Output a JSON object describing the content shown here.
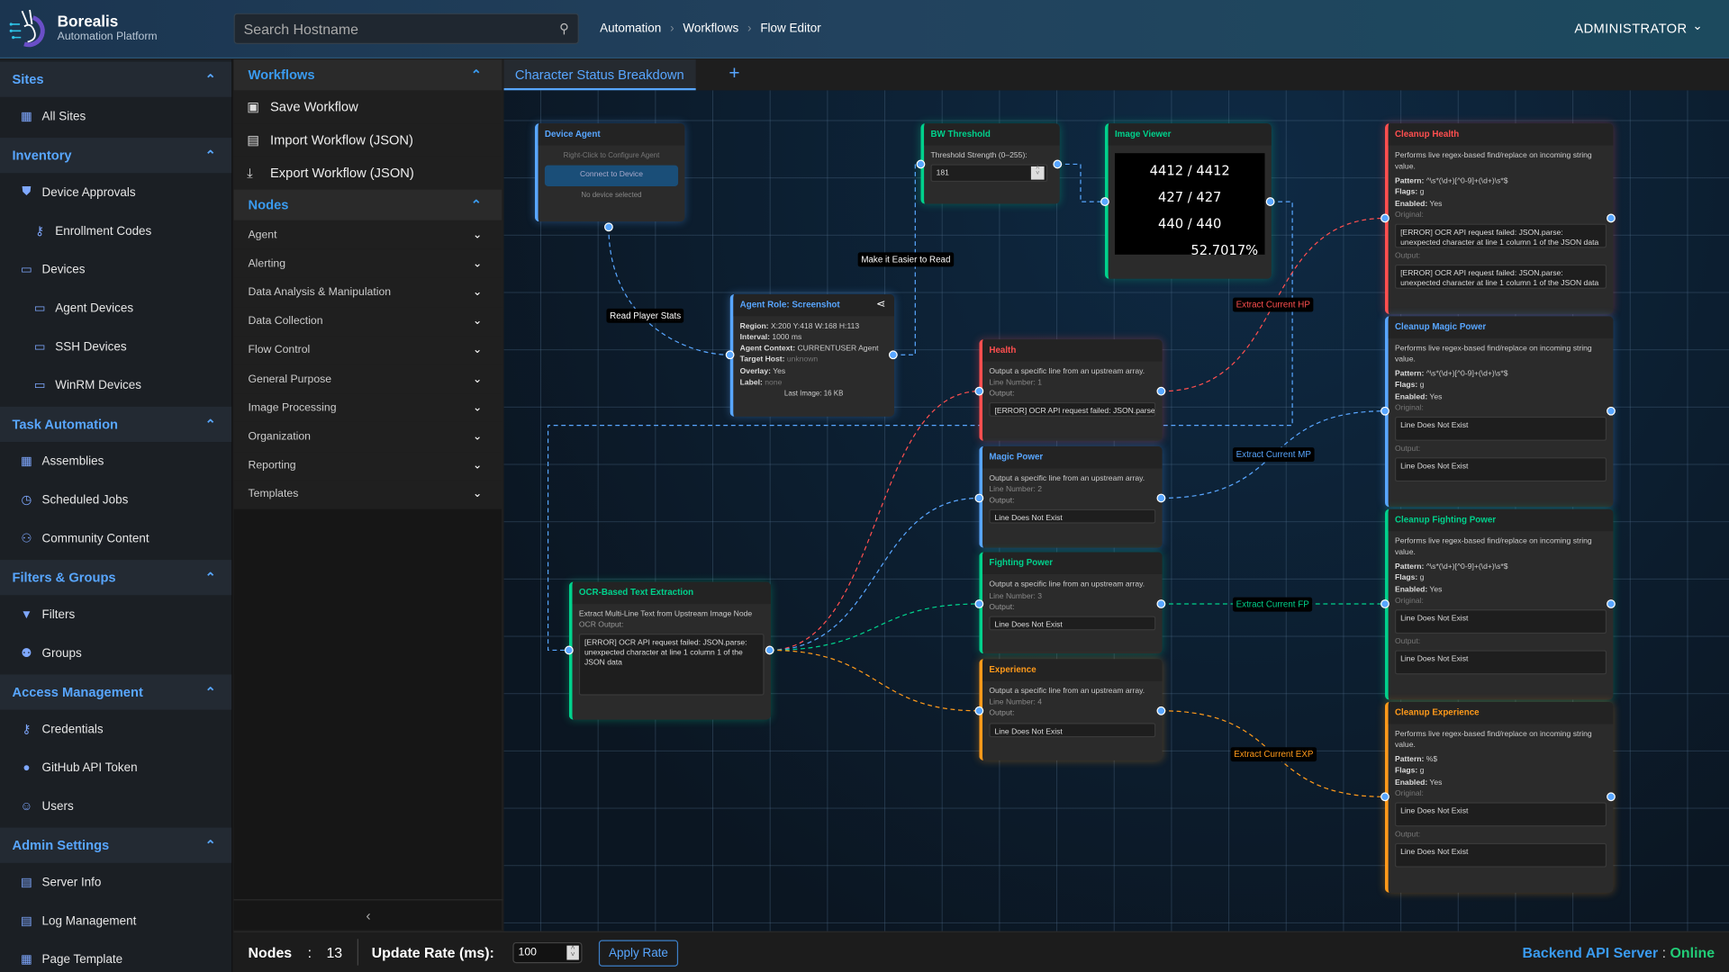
{
  "header": {
    "brand": "Borealis",
    "subtitle": "Automation Platform",
    "search_placeholder": "Search Hostname",
    "breadcrumb": [
      "Automation",
      "Workflows",
      "Flow Editor"
    ],
    "user": "ADMINISTRATOR"
  },
  "sidebar": [
    {
      "title": "Sites",
      "items": [
        {
          "label": "All Sites",
          "icon": "building-icon",
          "sub": false
        }
      ]
    },
    {
      "title": "Inventory",
      "items": [
        {
          "label": "Device Approvals",
          "icon": "shield-check-icon",
          "sub": false
        },
        {
          "label": "Enrollment Codes",
          "icon": "key-icon",
          "sub": true
        },
        {
          "label": "Devices",
          "icon": "devices-icon",
          "sub": false
        },
        {
          "label": "Agent Devices",
          "icon": "devices-icon",
          "sub": true
        },
        {
          "label": "SSH Devices",
          "icon": "devices-icon",
          "sub": true
        },
        {
          "label": "WinRM Devices",
          "icon": "devices-icon",
          "sub": true
        }
      ]
    },
    {
      "title": "Task Automation",
      "items": [
        {
          "label": "Assemblies",
          "icon": "grid-icon",
          "sub": false
        },
        {
          "label": "Scheduled Jobs",
          "icon": "clock-icon",
          "sub": false
        },
        {
          "label": "Community Content",
          "icon": "people-icon",
          "sub": false
        }
      ]
    },
    {
      "title": "Filters & Groups",
      "items": [
        {
          "label": "Filters",
          "icon": "filter-icon",
          "sub": false
        },
        {
          "label": "Groups",
          "icon": "group-icon",
          "sub": false
        }
      ]
    },
    {
      "title": "Access Management",
      "items": [
        {
          "label": "Credentials",
          "icon": "key-icon",
          "sub": false
        },
        {
          "label": "GitHub API Token",
          "icon": "github-icon",
          "sub": false
        },
        {
          "label": "Users",
          "icon": "user-icon",
          "sub": false
        }
      ]
    },
    {
      "title": "Admin Settings",
      "items": [
        {
          "label": "Server Info",
          "icon": "server-icon",
          "sub": false
        },
        {
          "label": "Log Management",
          "icon": "log-icon",
          "sub": false
        },
        {
          "label": "Page Template",
          "icon": "template-icon",
          "sub": false
        }
      ]
    }
  ],
  "panel": {
    "workflows_title": "Workflows",
    "actions": [
      {
        "label": "Save Workflow",
        "icon": "save-icon"
      },
      {
        "label": "Import Workflow (JSON)",
        "icon": "import-icon"
      },
      {
        "label": "Export Workflow (JSON)",
        "icon": "export-icon"
      }
    ],
    "nodes_title": "Nodes",
    "categories": [
      "Agent",
      "Alerting",
      "Data Analysis & Manipulation",
      "Data Collection",
      "Flow Control",
      "General Purpose",
      "Image Processing",
      "Organization",
      "Reporting",
      "Templates"
    ]
  },
  "tabs": {
    "active": "Character Status Breakdown",
    "add": "+"
  },
  "colors": {
    "blue": "#58a6ff",
    "green": "#00d18c",
    "red": "#ff4f4f",
    "orange": "#ff9a1a"
  },
  "nodes": {
    "device_agent": {
      "title": "Device Agent",
      "hint": "Right-Click to Configure Agent",
      "button": "Connect to Device",
      "status": "No device selected"
    },
    "bw": {
      "title": "BW Threshold",
      "label": "Threshold Strength (0–255):",
      "value": "181"
    },
    "viewer": {
      "title": "Image Viewer",
      "lines": [
        "4412 / 4412",
        "427 / 427",
        "440 / 440",
        "52.7017%"
      ]
    },
    "screenshot": {
      "title": "Agent Role: Screenshot",
      "fields": [
        [
          "Region:",
          "X:200 Y:418 W:168 H:113"
        ],
        [
          "Interval:",
          "1000 ms"
        ],
        [
          "Agent Context:",
          "CURRENTUSER Agent"
        ],
        [
          "Target Host:",
          "unknown"
        ],
        [
          "Overlay:",
          "Yes"
        ],
        [
          "Label:",
          "none"
        ]
      ],
      "footer": "Last Image: 16 KB"
    },
    "ocr": {
      "title": "OCR-Based Text Extraction",
      "desc": "Extract Multi-Line Text from Upstream Image Node",
      "label": "OCR Output:",
      "output": "[ERROR] OCR API request failed: JSON.parse: unexpected character at line 1 column 1 of the JSON data"
    },
    "lines": [
      {
        "title": "Health",
        "desc": "Output a specific line from an upstream array.",
        "line": "Line Number: 1",
        "out_label": "Output:",
        "output": "[ERROR] OCR API request failed: JSON.parse: unexpected"
      },
      {
        "title": "Magic Power",
        "desc": "Output a specific line from an upstream array.",
        "line": "Line Number: 2",
        "out_label": "Output:",
        "output": "Line Does Not Exist"
      },
      {
        "title": "Fighting Power",
        "desc": "Output a specific line from an upstream array.",
        "line": "Line Number: 3",
        "out_label": "Output:",
        "output": "Line Does Not Exist"
      },
      {
        "title": "Experience",
        "desc": "Output a specific line from an upstream array.",
        "line": "Line Number: 4",
        "out_label": "Output:",
        "output": "Line Does Not Exist"
      }
    ],
    "cleanups": [
      {
        "title": "Cleanup Health",
        "desc": "Performs live regex-based find/replace on incoming string value.",
        "pattern": "^\\s*(\\d+)[^0-9]+(\\d+)\\s*$",
        "flags": "g",
        "enabled": "Yes",
        "original": "[ERROR] OCR API request failed: JSON.parse: unexpected character at line 1 column 1 of the JSON data",
        "output": "[ERROR] OCR API request failed: JSON.parse: unexpected character at line 1 column 1 of the JSON data"
      },
      {
        "title": "Cleanup Magic Power",
        "desc": "Performs live regex-based find/replace on incoming string value.",
        "pattern": "^\\s*(\\d+)[^0-9]+(\\d+)\\s*$",
        "flags": "g",
        "enabled": "Yes",
        "original": "Line Does Not Exist",
        "output": "Line Does Not Exist"
      },
      {
        "title": "Cleanup Fighting Power",
        "desc": "Performs live regex-based find/replace on incoming string value.",
        "pattern": "^\\s*(\\d+)[^0-9]+(\\d+)\\s*$",
        "flags": "g",
        "enabled": "Yes",
        "original": "Line Does Not Exist",
        "output": "Line Does Not Exist"
      },
      {
        "title": "Cleanup Experience",
        "desc": "Performs live regex-based find/replace on incoming string value.",
        "pattern": "%$",
        "flags": "g",
        "enabled": "Yes",
        "original": "Line Does Not Exist",
        "output": "Line Does Not Exist"
      }
    ],
    "field_labels": {
      "pattern": "Pattern:",
      "flags": "Flags:",
      "enabled": "Enabled:",
      "original": "Original:",
      "output": "Output:"
    }
  },
  "edge_labels": [
    "Read Player Stats",
    "Make it Easier to Read",
    "Extract Current HP",
    "Extract Current MP",
    "Extract Current FP",
    "Extract Current EXP"
  ],
  "footer": {
    "nodes_label": "Nodes",
    "sep": ":",
    "nodes_count": "13",
    "rate_label": "Update Rate (ms):",
    "rate_value": "100",
    "apply": "Apply Rate",
    "api_label": "Backend API Server",
    "api_sep": ":",
    "api_status": "Online"
  }
}
